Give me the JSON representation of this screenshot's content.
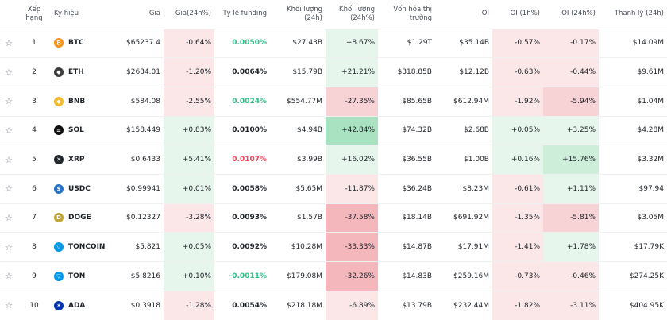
{
  "headers": {
    "rank": "Xếp hạng",
    "symbol": "Ký hiệu",
    "price": "Giá",
    "price_change": "Giá(24h%)",
    "funding": "Tỷ lệ funding",
    "volume": "Khối lượng (24h)",
    "volume_change": "Khối lượng (24h%)",
    "market_cap": "Vốn hóa thị trường",
    "oi": "OI",
    "oi_1h": "OI (1h%)",
    "oi_24h": "OI (24h%)",
    "liquidation": "Thanh lý (24h)"
  },
  "colors": {
    "positive_text": "#2ebd85",
    "negative_text": "#f6465d",
    "green_light": "#e6f6ec",
    "green_mid": "#cdeed9",
    "green_strong": "#a9e2c0",
    "red_light": "#fbe7e8",
    "red_mid": "#f8d3d6",
    "red_strong": "#f3b7bc"
  },
  "rows": [
    {
      "rank": "1",
      "icon": "bitcoin-icon",
      "icon_color": "#f7931a",
      "symbol": "BTC",
      "price": "$65237.4",
      "price_change": "-0.64%",
      "funding": "0.0050%",
      "funding_color": "#2ebd85",
      "volume": "$27.43B",
      "volume_change": "+8.67%",
      "market_cap": "$1.29T",
      "oi": "$35.14B",
      "oi_1h": "-0.57%",
      "oi_24h": "-0.17%",
      "liquidation": "$14.09M",
      "bg": {
        "price_change": "r1",
        "volume_change": "g1",
        "oi_1h": "r1",
        "oi_24h": "r1"
      }
    },
    {
      "rank": "2",
      "icon": "ethereum-icon",
      "icon_color": "#3c3c3d",
      "symbol": "ETH",
      "price": "$2634.01",
      "price_change": "-1.20%",
      "funding": "0.0064%",
      "funding_color": "#1e2329",
      "volume": "$15.79B",
      "volume_change": "+21.21%",
      "market_cap": "$318.85B",
      "oi": "$12.12B",
      "oi_1h": "-0.63%",
      "oi_24h": "-0.44%",
      "liquidation": "$9.61M",
      "bg": {
        "price_change": "r1",
        "volume_change": "g1",
        "oi_1h": "r1",
        "oi_24h": "r1"
      }
    },
    {
      "rank": "3",
      "icon": "bnb-icon",
      "icon_color": "#f3ba2f",
      "symbol": "BNB",
      "price": "$584.08",
      "price_change": "-2.55%",
      "funding": "0.0024%",
      "funding_color": "#2ebd85",
      "volume": "$554.77M",
      "volume_change": "-27.35%",
      "market_cap": "$85.65B",
      "oi": "$612.94M",
      "oi_1h": "-1.92%",
      "oi_24h": "-5.94%",
      "liquidation": "$1.04M",
      "bg": {
        "price_change": "r1",
        "volume_change": "r2",
        "oi_1h": "r1",
        "oi_24h": "r2"
      }
    },
    {
      "rank": "4",
      "icon": "solana-icon",
      "icon_color": "#111111",
      "symbol": "SOL",
      "price": "$158.449",
      "price_change": "+0.83%",
      "funding": "0.0100%",
      "funding_color": "#1e2329",
      "volume": "$4.94B",
      "volume_change": "+42.84%",
      "market_cap": "$74.32B",
      "oi": "$2.68B",
      "oi_1h": "+0.05%",
      "oi_24h": "+3.25%",
      "liquidation": "$4.28M",
      "bg": {
        "price_change": "g1",
        "volume_change": "g3",
        "oi_1h": "g1",
        "oi_24h": "g1"
      }
    },
    {
      "rank": "5",
      "icon": "xrp-icon",
      "icon_color": "#23292f",
      "symbol": "XRP",
      "price": "$0.6433",
      "price_change": "+5.41%",
      "funding": "0.0107%",
      "funding_color": "#f6465d",
      "volume": "$3.99B",
      "volume_change": "+16.02%",
      "market_cap": "$36.55B",
      "oi": "$1.00B",
      "oi_1h": "+0.16%",
      "oi_24h": "+15.76%",
      "liquidation": "$3.32M",
      "bg": {
        "price_change": "g1",
        "volume_change": "g1",
        "oi_1h": "g1",
        "oi_24h": "g2"
      }
    },
    {
      "rank": "6",
      "icon": "usdc-icon",
      "icon_color": "#2775ca",
      "symbol": "USDC",
      "price": "$0.99941",
      "price_change": "+0.01%",
      "funding": "0.0058%",
      "funding_color": "#1e2329",
      "volume": "$5.65M",
      "volume_change": "-11.87%",
      "market_cap": "$36.24B",
      "oi": "$8.23M",
      "oi_1h": "-0.61%",
      "oi_24h": "+1.11%",
      "liquidation": "$97.94",
      "bg": {
        "price_change": "g1",
        "volume_change": "r1",
        "oi_1h": "r1",
        "oi_24h": "g1"
      }
    },
    {
      "rank": "7",
      "icon": "dogecoin-icon",
      "icon_color": "#c2a633",
      "symbol": "DOGE",
      "price": "$0.12327",
      "price_change": "-3.28%",
      "funding": "0.0093%",
      "funding_color": "#1e2329",
      "volume": "$1.57B",
      "volume_change": "-37.58%",
      "market_cap": "$18.14B",
      "oi": "$691.92M",
      "oi_1h": "-1.35%",
      "oi_24h": "-5.81%",
      "liquidation": "$3.05M",
      "bg": {
        "price_change": "r1",
        "volume_change": "r3",
        "oi_1h": "r1",
        "oi_24h": "r2"
      }
    },
    {
      "rank": "8",
      "icon": "toncoin-icon",
      "icon_color": "#0098ea",
      "symbol": "TONCOIN",
      "price": "$5.821",
      "price_change": "+0.05%",
      "funding": "0.0092%",
      "funding_color": "#1e2329",
      "volume": "$10.28M",
      "volume_change": "-33.33%",
      "market_cap": "$14.87B",
      "oi": "$17.91M",
      "oi_1h": "-1.41%",
      "oi_24h": "+1.78%",
      "liquidation": "$17.79K",
      "bg": {
        "price_change": "g1",
        "volume_change": "r3",
        "oi_1h": "r1",
        "oi_24h": "g1"
      }
    },
    {
      "rank": "9",
      "icon": "ton-icon",
      "icon_color": "#0098ea",
      "symbol": "TON",
      "price": "$5.8216",
      "price_change": "+0.10%",
      "funding": "-0.0011%",
      "funding_color": "#2ebd85",
      "volume": "$179.08M",
      "volume_change": "-32.26%",
      "market_cap": "$14.83B",
      "oi": "$259.16M",
      "oi_1h": "-0.73%",
      "oi_24h": "-0.46%",
      "liquidation": "$274.25K",
      "bg": {
        "price_change": "g1",
        "volume_change": "r3",
        "oi_1h": "r1",
        "oi_24h": "r1"
      }
    },
    {
      "rank": "10",
      "icon": "cardano-icon",
      "icon_color": "#0033ad",
      "symbol": "ADA",
      "price": "$0.3918",
      "price_change": "-1.28%",
      "funding": "0.0054%",
      "funding_color": "#1e2329",
      "volume": "$218.18M",
      "volume_change": "-6.89%",
      "market_cap": "$13.79B",
      "oi": "$232.44M",
      "oi_1h": "-1.82%",
      "oi_24h": "-3.11%",
      "liquidation": "$404.95K",
      "bg": {
        "price_change": "r1",
        "volume_change": "r1",
        "oi_1h": "r1",
        "oi_24h": "r1"
      }
    }
  ]
}
